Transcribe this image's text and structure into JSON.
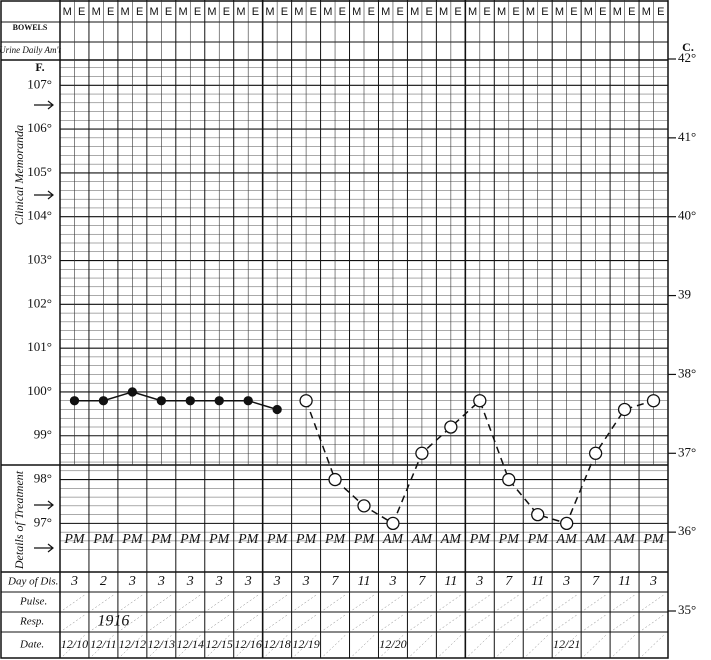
{
  "chart_data": {
    "type": "line",
    "shift_labels": [
      "M",
      "E"
    ],
    "ylabel": "F.",
    "y2label": "C.",
    "side_notes": [
      "Clinical Memoranda",
      "Details of Treatment"
    ],
    "row_labels": {
      "bowels": "BOWELS",
      "urine": "Urine Daily Am't",
      "day": "Day of Dis.",
      "pulse": "Pulse.",
      "resp": "Resp.",
      "date": "Date."
    },
    "categories": [
      "PM",
      "PM",
      "PM",
      "PM",
      "PM",
      "PM",
      "PM",
      "PM",
      "PM",
      "PM",
      "PM",
      "AM",
      "AM",
      "AM",
      "PM",
      "PM",
      "PM",
      "AM",
      "AM",
      "AM",
      "PM"
    ],
    "day_of_dis": [
      3,
      2,
      3,
      3,
      3,
      3,
      3,
      3,
      3,
      7,
      11,
      3,
      7,
      11,
      3,
      7,
      11,
      3,
      7,
      11,
      3
    ],
    "resp_note": "1916",
    "dates": [
      "12/10",
      "12/11",
      "12/12",
      "12/13",
      "12/14",
      "12/15",
      "12/16",
      "12/18",
      "12/19",
      null,
      null,
      "12/20",
      null,
      null,
      null,
      null,
      null,
      "12/21",
      null,
      null,
      null
    ],
    "ylim": [
      95,
      107.6
    ],
    "yticks": [
      {
        "value": 97,
        "label": "97°"
      },
      {
        "value": 98,
        "label": "98°"
      },
      {
        "value": 99,
        "label": "99°"
      },
      {
        "value": 100,
        "label": "100°"
      },
      {
        "value": 101,
        "label": "101°"
      },
      {
        "value": 102,
        "label": "102°"
      },
      {
        "value": 103,
        "label": "103°"
      },
      {
        "value": 104,
        "label": "104°"
      },
      {
        "value": 105,
        "label": "105°"
      },
      {
        "value": 106,
        "label": "106°"
      },
      {
        "value": 107,
        "label": "107°"
      }
    ],
    "y2lim": [
      35,
      42
    ],
    "y2ticks": [
      {
        "value": 35,
        "label": "35°"
      },
      {
        "value": 36,
        "label": "36°"
      },
      {
        "value": 37,
        "label": "37°"
      },
      {
        "value": 38,
        "label": "38°"
      },
      39,
      {
        "value": 40,
        "label": "40°"
      },
      {
        "value": 41,
        "label": "41°"
      },
      {
        "value": 42,
        "label": "42°"
      }
    ],
    "grid": true,
    "series": [
      {
        "color": "#111111",
        "marker": "filled",
        "dashed": false,
        "values": [
          99.8,
          99.8,
          100.0,
          99.8,
          99.8,
          99.8,
          99.8,
          99.6,
          null,
          null,
          null,
          null,
          null,
          null,
          null,
          null,
          null,
          null,
          null,
          null,
          null
        ]
      },
      {
        "color": "#111111",
        "marker": "open",
        "dashed": true,
        "values": [
          null,
          null,
          null,
          null,
          null,
          null,
          null,
          null,
          99.8,
          98.0,
          97.4,
          97.0,
          98.6,
          99.2,
          99.8,
          98.0,
          97.2,
          97.0,
          98.6,
          99.6,
          99.8
        ]
      }
    ]
  }
}
